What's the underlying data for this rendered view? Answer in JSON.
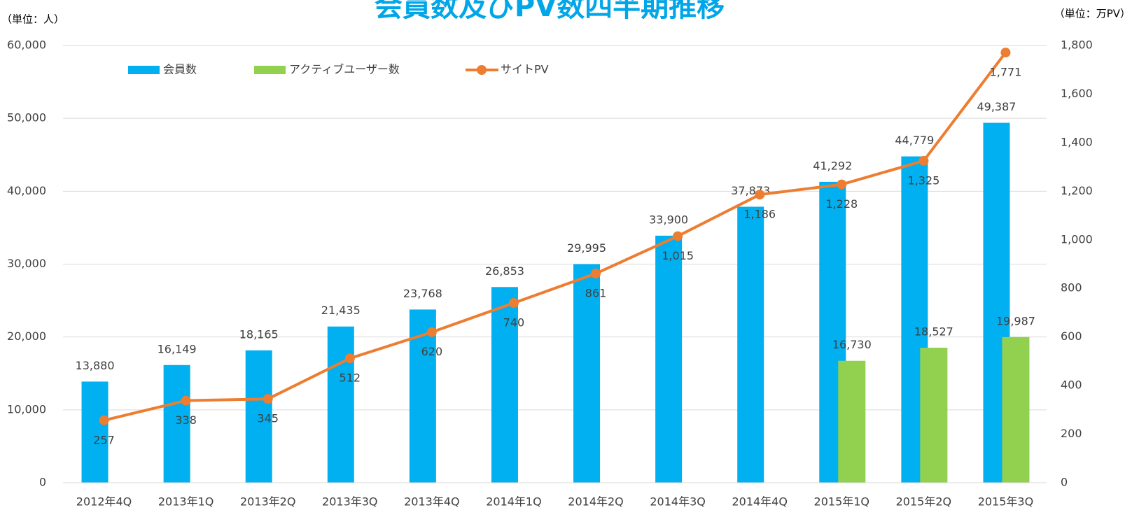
{
  "chart_data": {
    "type": "bar_line",
    "title": "会員数及びPV数四半期推移",
    "y_unit_label": "（単位：人）",
    "y2_unit_label": "（単位：万PV）",
    "categories": [
      "2012年4Q",
      "2013年1Q",
      "2013年2Q",
      "2013年3Q",
      "2013年4Q",
      "2014年1Q",
      "2014年2Q",
      "2014年3Q",
      "2014年4Q",
      "2015年1Q",
      "2015年2Q",
      "2015年3Q"
    ],
    "series": [
      {
        "name": "会員数",
        "color": "#00b0f0",
        "kind": "bar",
        "values": [
          13880,
          16149,
          18165,
          21435,
          23768,
          26853,
          29995,
          33900,
          37873,
          41292,
          44779,
          49387
        ],
        "value_labels": [
          "13,880",
          "16,149",
          "18,165",
          "21,435",
          "23,768",
          "26,853",
          "29,995",
          "33,900",
          "37,873",
          "41,292",
          "44,779",
          "49,387"
        ]
      },
      {
        "name": "アクティブユーザー数",
        "color": "#92d050",
        "kind": "bar",
        "values": [
          null,
          null,
          null,
          null,
          null,
          null,
          null,
          null,
          null,
          16730,
          18527,
          19987
        ],
        "value_labels": [
          null,
          null,
          null,
          null,
          null,
          null,
          null,
          null,
          null,
          "16,730",
          "18,527",
          "19,987"
        ]
      },
      {
        "name": "サイトPV",
        "color": "#ed7d31",
        "kind": "line",
        "axis": "y2",
        "values": [
          257,
          338,
          345,
          512,
          620,
          740,
          861,
          1015,
          1186,
          1228,
          1325,
          1771
        ],
        "value_labels": [
          "257",
          "338",
          "345",
          "512",
          "620",
          "740",
          "861",
          "1,015",
          "1,186",
          "1,228",
          "1,325",
          "1,771"
        ]
      }
    ],
    "ylim": [
      0,
      60000
    ],
    "yticks": [
      0,
      {
        "value": 10000,
        "label": "10,000"
      },
      {
        "value": 20000,
        "label": "20,000"
      },
      {
        "value": 30000,
        "label": "30,000"
      },
      {
        "value": 40000,
        "label": "40,000"
      },
      {
        "value": 50000,
        "label": "50,000"
      },
      {
        "value": 60000,
        "label": "60,000"
      }
    ],
    "y2lim": [
      0,
      1800
    ],
    "y2ticks": [
      0,
      200,
      400,
      600,
      800,
      {
        "value": 1000,
        "label": "1,000"
      },
      {
        "value": 1200,
        "label": "1,200"
      },
      {
        "value": 1400,
        "label": "1,400"
      },
      {
        "value": 1600,
        "label": "1,600"
      },
      {
        "value": 1800,
        "label": "1,800"
      }
    ],
    "grid": true,
    "legend": "top-left"
  }
}
